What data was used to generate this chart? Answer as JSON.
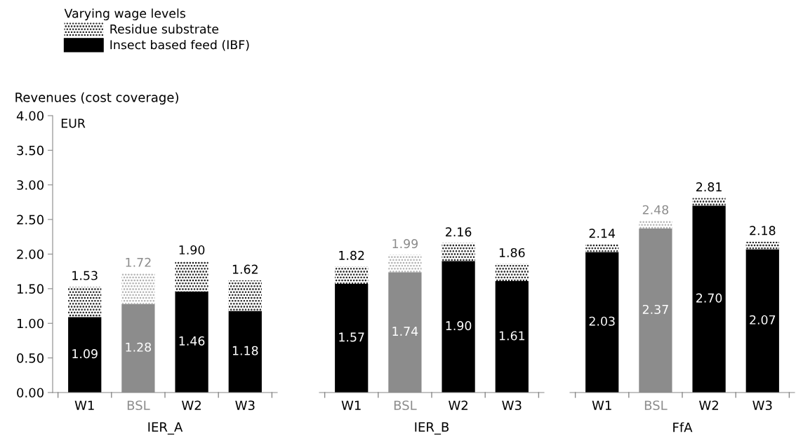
{
  "chart_data": [
    {
      "type": "bar",
      "stacked": true,
      "xlabel": "IER_A",
      "ylabel": "Revenues (cost coverage)",
      "annotations": [
        "EUR"
      ],
      "legend_title": "Varying wage levels",
      "legend": "top left",
      "categories": [
        "W1",
        "BSL",
        "W2",
        "W3"
      ],
      "series": [
        {
          "name": "Insect based feed (IBF)",
          "colors": [
            "#000000",
            "#8c8c8c",
            "#000000",
            "#000000"
          ],
          "values": [
            1.09,
            1.28,
            1.46,
            1.18
          ],
          "value_labels": [
            "1.09",
            "1.28",
            "1.46",
            "1.18"
          ]
        },
        {
          "name": "Residue substrate",
          "colors": [
            "#000000",
            "#a6a6a6",
            "#000000",
            "#000000"
          ],
          "values": [
            0.44,
            0.44,
            0.44,
            0.44
          ]
        }
      ],
      "totals": [
        "1.53",
        "1.72",
        "1.90",
        "1.62"
      ],
      "ylim": [
        0,
        4
      ],
      "yticks": [
        {
          "value": 0,
          "label": "0.00"
        },
        {
          "value": 0.5,
          "label": "0.50"
        },
        {
          "value": 1,
          "label": "1.00"
        },
        {
          "value": 1.5,
          "label": "1.50"
        },
        {
          "value": 2,
          "label": "2.00"
        },
        {
          "value": 2.5,
          "label": "2.50"
        },
        {
          "value": 3,
          "label": "3.00"
        },
        {
          "value": 3.5,
          "label": "3.50"
        },
        {
          "value": 4,
          "label": "4.00"
        }
      ]
    },
    {
      "type": "bar",
      "stacked": true,
      "xlabel": "IER_B",
      "tick_labels": "x",
      "categories": [
        "W1",
        "BSL",
        "W2",
        "W3"
      ],
      "series": [
        {
          "colors": [
            "#000000",
            "#8c8c8c",
            "#000000",
            "#000000"
          ],
          "values": [
            1.57,
            1.74,
            1.9,
            1.61
          ],
          "value_labels": [
            "1.57",
            "1.74",
            "1.90",
            "1.61"
          ]
        },
        {
          "colors": [
            "#000000",
            "#a6a6a6",
            "#000000",
            "#000000"
          ],
          "values": [
            0.25,
            0.25,
            0.26,
            0.25
          ]
        }
      ],
      "totals": [
        "1.82",
        "1.99",
        "2.16",
        "1.86"
      ],
      "ylim": [
        0,
        4
      ]
    },
    {
      "type": "bar",
      "stacked": true,
      "xlabel": "FfA",
      "tick_labels": "x",
      "categories": [
        "W1",
        "BSL",
        "W2",
        "W3"
      ],
      "series": [
        {
          "colors": [
            "#000000",
            "#8c8c8c",
            "#000000",
            "#000000"
          ],
          "values": [
            2.03,
            2.37,
            2.7,
            2.07
          ],
          "value_labels": [
            "2.03",
            "2.37",
            "2.70",
            "2.07"
          ]
        },
        {
          "colors": [
            "#000000",
            "#a6a6a6",
            "#000000",
            "#000000"
          ],
          "values": [
            0.11,
            0.11,
            0.11,
            0.11
          ]
        }
      ],
      "totals": [
        "2.14",
        "2.48",
        "2.81",
        "2.18"
      ],
      "ylim": [
        0,
        4
      ]
    }
  ]
}
